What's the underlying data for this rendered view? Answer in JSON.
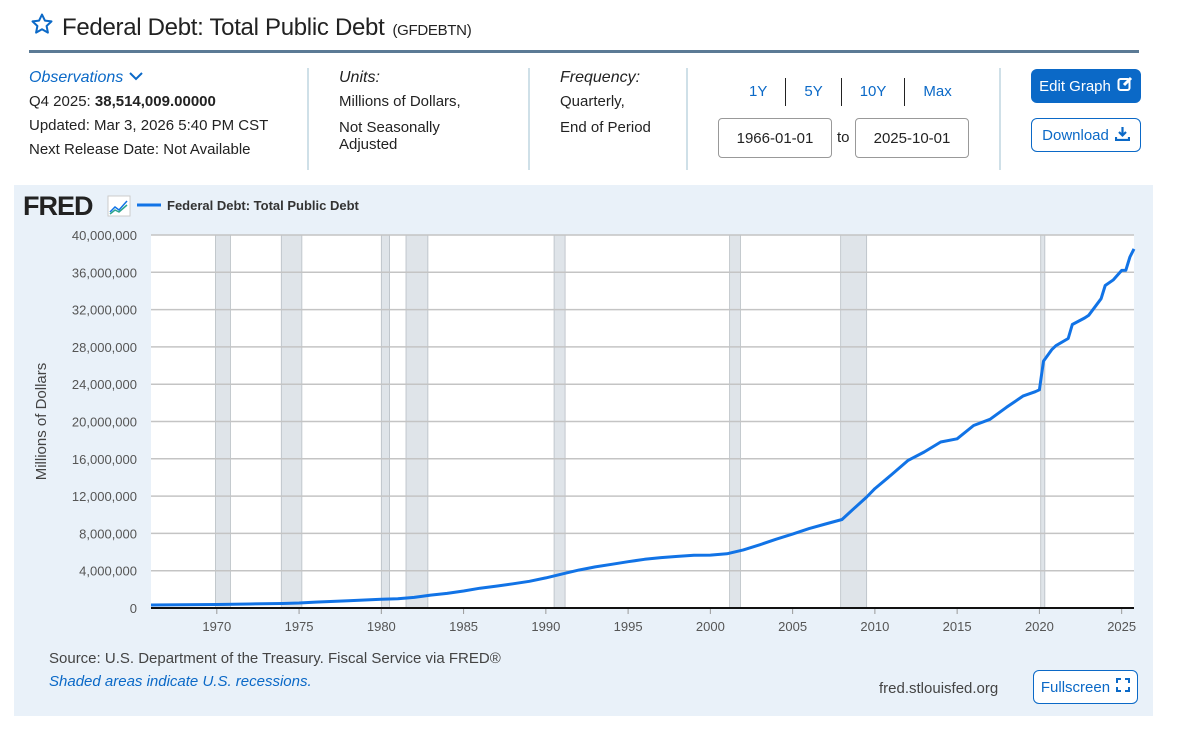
{
  "header": {
    "title": "Federal Debt: Total Public Debt",
    "series_id": "(GFDEBTN)",
    "star_icon": "star-outline"
  },
  "observations": {
    "label": "Observations",
    "latest_label": "Q4 2025:",
    "latest_value": "38,514,009.00000",
    "updated": "Updated: Mar 3, 2026 5:40 PM CST",
    "next_release": "Next Release Date: Not Available"
  },
  "units": {
    "label": "Units:",
    "line1": "Millions of Dollars,",
    "line2": "Not Seasonally",
    "line3": "Adjusted"
  },
  "frequency": {
    "label": "Frequency:",
    "line1": "Quarterly,",
    "line2": "End of Period"
  },
  "range": {
    "buttons": [
      "1Y",
      "5Y",
      "10Y",
      "Max"
    ],
    "start": "1966-01-01",
    "to": "to",
    "end": "2025-10-01"
  },
  "actions": {
    "edit": "Edit Graph",
    "download": "Download",
    "fullscreen": "Fullscreen"
  },
  "footer": {
    "source": "Source: U.S. Department of the Treasury. Fiscal Service via FRED®",
    "recessions_note": "Shaded areas indicate U.S. recessions.",
    "site": "fred.stlouisfed.org"
  },
  "logo": "FRED",
  "colors": {
    "line": "#1173e6",
    "accent": "#0b69c7",
    "recession": "#dfe4e9"
  },
  "chart_data": {
    "type": "line",
    "title": "",
    "legend": [
      "Federal Debt: Total Public Debt"
    ],
    "legend_placement": "top-left",
    "xlabel": "",
    "ylabel": "Millions of Dollars",
    "xlim": [
      1966.0,
      2025.75
    ],
    "ylim": [
      0,
      40000000
    ],
    "xticks": [
      1970,
      1975,
      1980,
      1985,
      1990,
      1995,
      2000,
      2005,
      2010,
      2015,
      2020,
      2025
    ],
    "yticks": [
      0,
      4000000,
      8000000,
      12000000,
      16000000,
      20000000,
      24000000,
      28000000,
      32000000,
      36000000,
      40000000
    ],
    "ytick_labels": [
      "0",
      "4,000,000",
      "8,000,000",
      "12,000,000",
      "16,000,000",
      "20,000,000",
      "24,000,000",
      "28,000,000",
      "32,000,000",
      "36,000,000",
      "40,000,000"
    ],
    "grid": true,
    "recessions": [
      [
        1969.92,
        1970.83
      ],
      [
        1973.92,
        1975.17
      ],
      [
        1980.0,
        1980.5
      ],
      [
        1981.5,
        1982.83
      ],
      [
        1990.5,
        1991.17
      ],
      [
        2001.17,
        2001.83
      ],
      [
        2007.92,
        2009.5
      ],
      [
        2020.08,
        2020.33
      ]
    ],
    "series": [
      {
        "name": "Federal Debt: Total Public Debt",
        "x": [
          1966,
          1968,
          1970,
          1972,
          1974,
          1975,
          1976,
          1978,
          1980,
          1981,
          1982,
          1983,
          1984,
          1985,
          1986,
          1987,
          1988,
          1989,
          1990,
          1991,
          1992,
          1993,
          1994,
          1995,
          1996,
          1997,
          1998,
          1999,
          2000,
          2001,
          2002,
          2003,
          2004,
          2005,
          2006,
          2007,
          2008,
          2008.75,
          2009.5,
          2010,
          2011,
          2012,
          2013,
          2014,
          2015,
          2016,
          2017,
          2018,
          2019,
          2019.75,
          2020.0,
          2020.25,
          2020.75,
          2021,
          2021.75,
          2022,
          2022.75,
          2023,
          2023.75,
          2024,
          2024.5,
          2025,
          2025.25,
          2025.5,
          2025.75
        ],
        "values": [
          320000,
          350000,
          380000,
          430000,
          480000,
          540000,
          630000,
          780000,
          930000,
          1000000,
          1140000,
          1380000,
          1570000,
          1820000,
          2120000,
          2350000,
          2600000,
          2860000,
          3230000,
          3660000,
          4060000,
          4410000,
          4690000,
          4970000,
          5220000,
          5410000,
          5530000,
          5660000,
          5670000,
          5810000,
          6230000,
          6780000,
          7380000,
          7930000,
          8510000,
          9010000,
          9490000,
          10700000,
          11900000,
          12800000,
          14270000,
          15810000,
          16730000,
          17800000,
          18150000,
          19570000,
          20240000,
          21520000,
          22720000,
          23200000,
          23400000,
          26480000,
          27700000,
          28130000,
          28900000,
          30400000,
          31100000,
          31400000,
          33170000,
          34580000,
          35200000,
          36200000,
          36210000,
          37640000,
          38514009
        ]
      }
    ]
  }
}
